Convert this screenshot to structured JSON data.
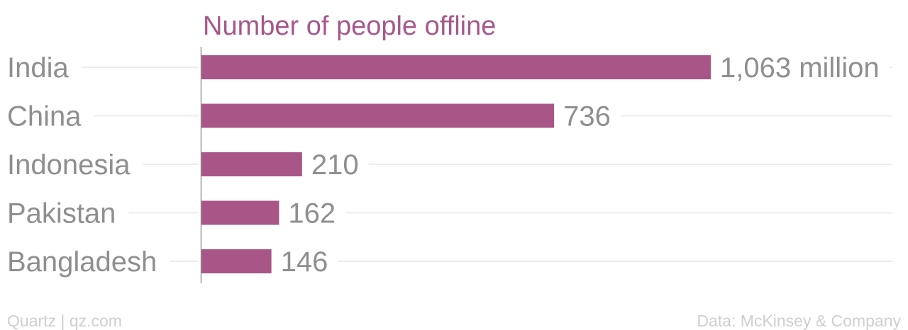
{
  "colors": {
    "bar": "#a85587",
    "title": "#a8578a",
    "label": "#8f8f8f",
    "gridline": "#ececec",
    "axis": "#9a9a9a",
    "footer": "#cfcfcf"
  },
  "chart_data": {
    "type": "bar",
    "orientation": "horizontal",
    "title": "Number of people offline",
    "categories": [
      "India",
      "China",
      "Indonesia",
      "Pakistan",
      "Bangladesh"
    ],
    "values": [
      1063,
      736,
      210,
      162,
      146
    ],
    "value_labels": [
      "1,063 million",
      "736",
      "210",
      "162",
      "146"
    ],
    "unit": "million",
    "xlim": [
      0,
      1063
    ],
    "grid": true,
    "legend": "none"
  },
  "footer": {
    "source_left": "Quartz | qz.com",
    "source_right": "Data: McKinsey & Company"
  }
}
